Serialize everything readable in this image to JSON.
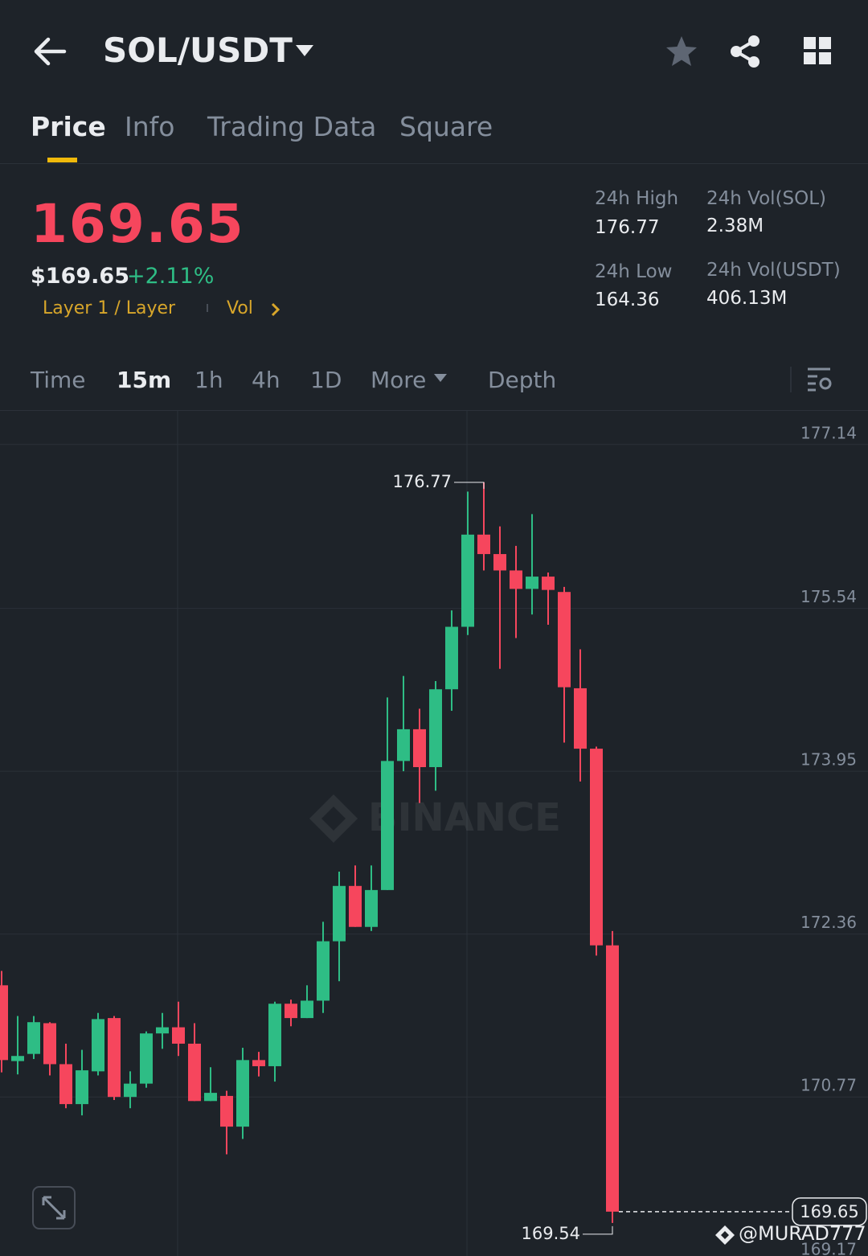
{
  "header": {
    "pair": "SOL/USDT"
  },
  "tabs": [
    "Price",
    "Info",
    "Trading Data",
    "Square"
  ],
  "ticker": {
    "last": "169.65",
    "usd": "$169.65",
    "change": "+2.11%",
    "tag": "Layer 1 / Layer",
    "vol_link": "Vol",
    "stats": [
      {
        "label": "24h High",
        "value": "176.77"
      },
      {
        "label": "24h Vol(SOL)",
        "value": "2.38M"
      },
      {
        "label": "24h Low",
        "value": "164.36"
      },
      {
        "label": "24h Vol(USDT)",
        "value": "406.13M"
      }
    ]
  },
  "intervals": [
    "Time",
    "15m",
    "1h",
    "4h",
    "1D",
    "More",
    "Depth"
  ],
  "chart_data": {
    "type": "candlestick",
    "watermark": "BINANCE",
    "categories": [
      null,
      null,
      null,
      null,
      null,
      null,
      null,
      null,
      null,
      null,
      null,
      null,
      null,
      null,
      null,
      null,
      null,
      null,
      null,
      null,
      null,
      null,
      null,
      null,
      null,
      null,
      null,
      null,
      null,
      null,
      null,
      null,
      null,
      null,
      null,
      null,
      null,
      null,
      null
    ],
    "open": [
      171.86,
      171.12,
      171.19,
      171.49,
      171.09,
      170.7,
      171.02,
      171.54,
      170.77,
      170.9,
      171.39,
      171.45,
      171.29,
      170.73,
      170.78,
      170.48,
      171.13,
      171.07,
      171.68,
      171.54,
      171.71,
      172.29,
      172.83,
      172.43,
      172.79,
      174.05,
      174.36,
      173.99,
      174.75,
      175.36,
      176.26,
      176.07,
      175.91,
      175.73,
      175.85,
      175.7,
      174.76,
      174.17,
      172.25
    ],
    "high": [
      172.0,
      171.56,
      171.56,
      171.5,
      171.29,
      171.23,
      171.59,
      171.56,
      171.02,
      171.41,
      171.59,
      171.7,
      171.49,
      171.06,
      170.83,
      171.25,
      171.21,
      171.7,
      171.72,
      171.86,
      172.48,
      172.97,
      173.03,
      173.03,
      174.67,
      174.88,
      174.56,
      174.83,
      175.52,
      176.68,
      176.77,
      176.34,
      176.15,
      176.46,
      175.89,
      175.75,
      175.14,
      174.19,
      172.39
    ],
    "low": [
      171.01,
      170.99,
      171.14,
      170.98,
      170.66,
      170.59,
      170.98,
      170.74,
      170.66,
      170.86,
      171.24,
      171.17,
      170.73,
      170.73,
      170.21,
      170.36,
      170.97,
      170.92,
      171.46,
      171.54,
      171.59,
      171.9,
      172.43,
      172.39,
      172.79,
      173.95,
      173.64,
      173.76,
      174.54,
      175.28,
      175.91,
      174.95,
      175.25,
      175.48,
      175.38,
      174.23,
      173.85,
      172.15,
      169.54
    ],
    "close": [
      171.13,
      171.17,
      171.5,
      171.09,
      170.7,
      171.03,
      171.53,
      170.77,
      170.9,
      171.39,
      171.45,
      171.29,
      170.73,
      170.81,
      170.48,
      171.13,
      171.07,
      171.68,
      171.54,
      171.71,
      172.29,
      172.83,
      172.43,
      172.79,
      174.05,
      174.36,
      173.99,
      174.75,
      175.36,
      176.26,
      176.07,
      175.91,
      175.73,
      175.85,
      175.72,
      174.77,
      174.17,
      172.25,
      169.65
    ],
    "up_color": "#2ebd85",
    "down_color": "#f6465d",
    "ylim": [
      169.17,
      177.46
    ],
    "yticks": [
      177.14,
      175.54,
      173.95,
      172.36,
      170.77,
      169.17
    ],
    "grid": true,
    "max_marker": 176.77,
    "min_marker": 169.54,
    "last_price": 169.65
  },
  "footer": {
    "credit": "@MURAD777"
  }
}
